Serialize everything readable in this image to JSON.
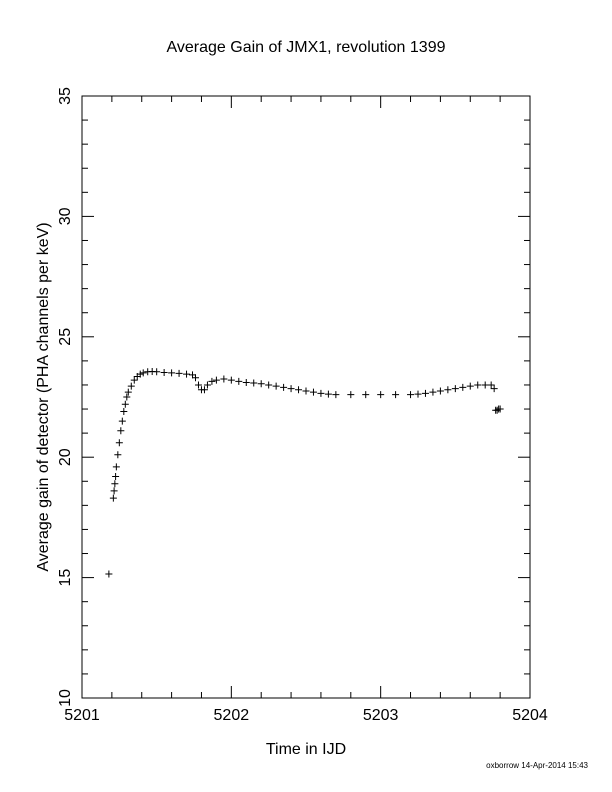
{
  "chart_data": {
    "type": "scatter",
    "title": "Average Gain of JMX1, revolution 1399",
    "xlabel": "Time in IJD",
    "ylabel": "Average gain of detector (PHA channels per keV)",
    "xlim": [
      5201,
      5204
    ],
    "ylim": [
      10,
      35
    ],
    "x_ticks": [
      "5201",
      "5202",
      "5203",
      "5204"
    ],
    "y_ticks": [
      "10",
      "15",
      "20",
      "25",
      "30",
      "35"
    ],
    "marker": "plus",
    "color": "#000000",
    "grid": false,
    "points": [
      [
        5201.18,
        15.15
      ],
      [
        5201.21,
        18.3
      ],
      [
        5201.215,
        18.6
      ],
      [
        5201.22,
        18.9
      ],
      [
        5201.225,
        19.2
      ],
      [
        5201.23,
        19.6
      ],
      [
        5201.24,
        20.1
      ],
      [
        5201.25,
        20.6
      ],
      [
        5201.26,
        21.1
      ],
      [
        5201.27,
        21.5
      ],
      [
        5201.28,
        21.9
      ],
      [
        5201.29,
        22.2
      ],
      [
        5201.3,
        22.5
      ],
      [
        5201.31,
        22.7
      ],
      [
        5201.33,
        22.95
      ],
      [
        5201.35,
        23.2
      ],
      [
        5201.37,
        23.35
      ],
      [
        5201.39,
        23.45
      ],
      [
        5201.41,
        23.5
      ],
      [
        5201.44,
        23.55
      ],
      [
        5201.47,
        23.56
      ],
      [
        5201.5,
        23.55
      ],
      [
        5201.55,
        23.52
      ],
      [
        5201.6,
        23.5
      ],
      [
        5201.65,
        23.48
      ],
      [
        5201.7,
        23.45
      ],
      [
        5201.74,
        23.42
      ],
      [
        5201.76,
        23.3
      ],
      [
        5201.78,
        23.0
      ],
      [
        5201.8,
        22.8
      ],
      [
        5201.82,
        22.8
      ],
      [
        5201.84,
        23.0
      ],
      [
        5201.87,
        23.15
      ],
      [
        5201.9,
        23.2
      ],
      [
        5201.95,
        23.25
      ],
      [
        5202.0,
        23.2
      ],
      [
        5202.05,
        23.15
      ],
      [
        5202.1,
        23.1
      ],
      [
        5202.15,
        23.08
      ],
      [
        5202.2,
        23.05
      ],
      [
        5202.25,
        23.0
      ],
      [
        5202.3,
        22.95
      ],
      [
        5202.35,
        22.9
      ],
      [
        5202.4,
        22.85
      ],
      [
        5202.45,
        22.8
      ],
      [
        5202.5,
        22.75
      ],
      [
        5202.55,
        22.7
      ],
      [
        5202.6,
        22.65
      ],
      [
        5202.65,
        22.62
      ],
      [
        5202.7,
        22.6
      ],
      [
        5202.8,
        22.6
      ],
      [
        5202.9,
        22.6
      ],
      [
        5203.0,
        22.6
      ],
      [
        5203.1,
        22.6
      ],
      [
        5203.2,
        22.6
      ],
      [
        5203.25,
        22.62
      ],
      [
        5203.3,
        22.65
      ],
      [
        5203.35,
        22.7
      ],
      [
        5203.4,
        22.75
      ],
      [
        5203.45,
        22.8
      ],
      [
        5203.5,
        22.85
      ],
      [
        5203.55,
        22.9
      ],
      [
        5203.6,
        22.95
      ],
      [
        5203.65,
        23.0
      ],
      [
        5203.7,
        23.0
      ],
      [
        5203.74,
        23.0
      ],
      [
        5203.76,
        22.85
      ],
      [
        5203.77,
        21.95
      ],
      [
        5203.78,
        21.95
      ],
      [
        5203.79,
        22.0
      ],
      [
        5203.8,
        22.0
      ]
    ]
  },
  "footer": {
    "credit": "oxborrow 14-Apr-2014 15:43"
  }
}
